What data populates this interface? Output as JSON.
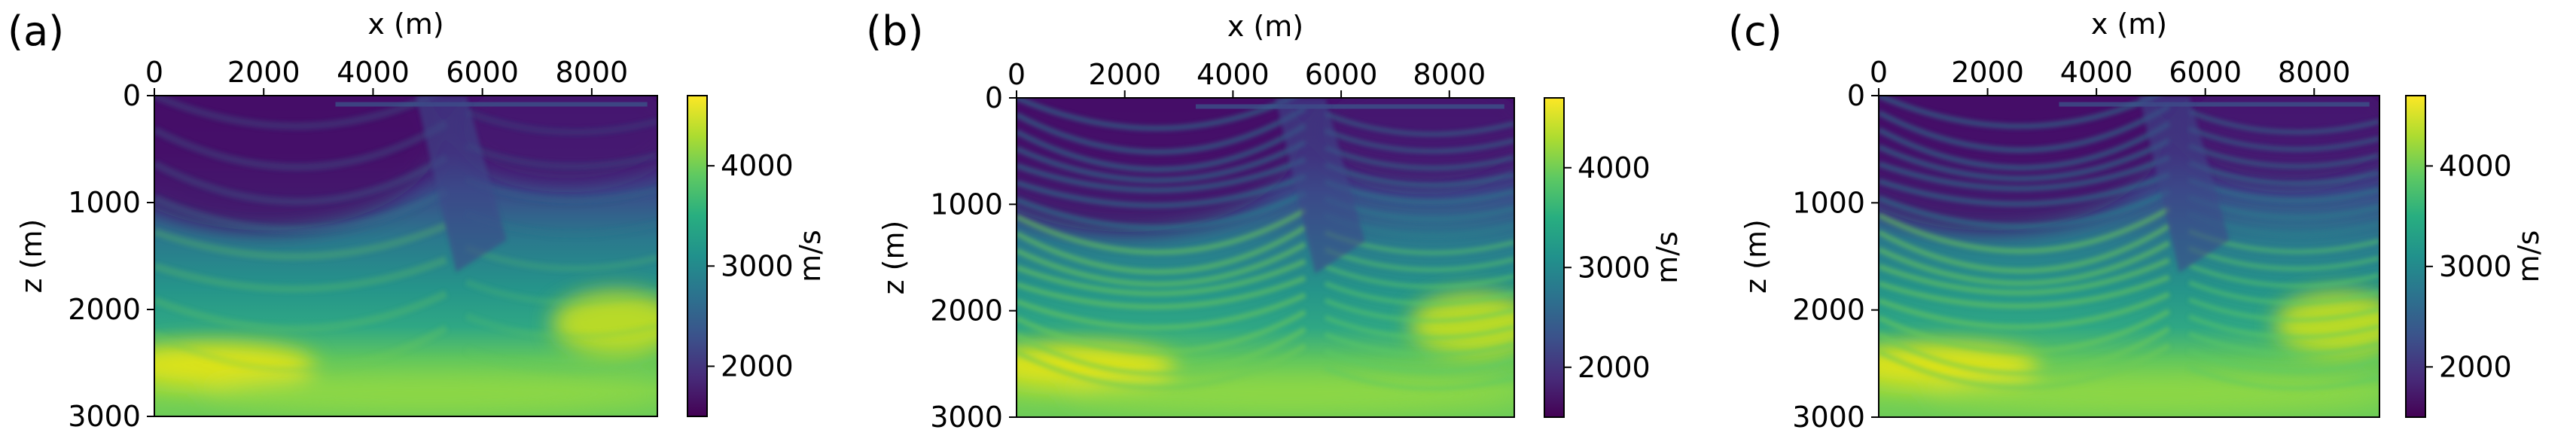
{
  "panels": [
    {
      "panel_label": "(a)",
      "chart_data": {
        "type": "heatmap",
        "xlabel": "x (m)",
        "ylabel": "z (m)",
        "xlim": [
          0,
          9200
        ],
        "ylim": [
          3000,
          0
        ],
        "xticks": [
          "0",
          "2000",
          "4000",
          "6000",
          "8000"
        ],
        "yticks": [
          "0",
          "1000",
          "2000",
          "3000"
        ],
        "colorbar": {
          "label": "m/s",
          "range": [
            1500,
            4700
          ],
          "ticks": [
            "2000",
            "3000",
            "4000"
          ],
          "colormap": "viridis"
        },
        "style": "smooth",
        "description_values": {
          "near_surface_velocity": 1700,
          "deep_velocity": 4500
        }
      }
    },
    {
      "panel_label": "(b)",
      "chart_data": {
        "type": "heatmap",
        "xlabel": "x (m)",
        "ylabel": "z (m)",
        "xlim": [
          0,
          9200
        ],
        "ylim": [
          3000,
          0
        ],
        "xticks": [
          "0",
          "2000",
          "4000",
          "6000",
          "8000"
        ],
        "yticks": [
          "0",
          "1000",
          "2000",
          "3000"
        ],
        "colorbar": {
          "label": "m/s",
          "range": [
            1500,
            4700
          ],
          "ticks": [
            "2000",
            "3000",
            "4000"
          ],
          "colormap": "viridis"
        },
        "style": "layered",
        "description_values": {
          "near_surface_velocity": 1700,
          "deep_velocity": 4500
        }
      }
    },
    {
      "panel_label": "(c)",
      "chart_data": {
        "type": "heatmap",
        "xlabel": "x (m)",
        "ylabel": "z (m)",
        "xlim": [
          0,
          9200
        ],
        "ylim": [
          3000,
          0
        ],
        "xticks": [
          "0",
          "2000",
          "4000",
          "6000",
          "8000"
        ],
        "yticks": [
          "0",
          "1000",
          "2000",
          "3000"
        ],
        "colorbar": {
          "label": "m/s",
          "range": [
            1500,
            4700
          ],
          "ticks": [
            "2000",
            "3000",
            "4000"
          ],
          "colormap": "viridis"
        },
        "style": "layered",
        "description_values": {
          "near_surface_velocity": 1700,
          "deep_velocity": 4500
        }
      }
    }
  ],
  "colors": {
    "viridis": [
      "#440154",
      "#472c7a",
      "#3b528b",
      "#2c728e",
      "#21918c",
      "#28ae80",
      "#5ec962",
      "#addc30",
      "#fde725"
    ]
  }
}
